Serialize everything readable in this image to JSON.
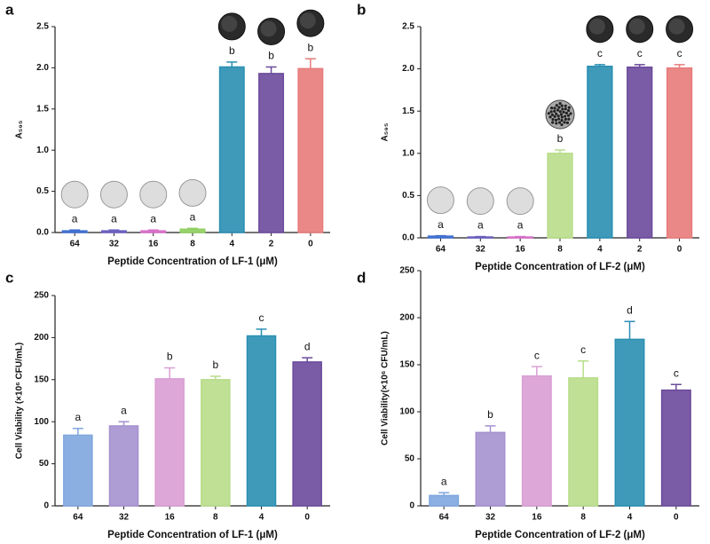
{
  "chart_data": [
    {
      "type": "bar",
      "panel": "a",
      "ylabel": "A₅₉₅",
      "xlabel": "Peptide  Concentration of LF-1 (μM)",
      "categories": [
        "64",
        "32",
        "16",
        "8",
        "4",
        "2",
        "0"
      ],
      "values": [
        0.02,
        0.02,
        0.02,
        0.04,
        2.01,
        1.93,
        1.99
      ],
      "errors": [
        0.01,
        0.01,
        0.01,
        0.01,
        0.06,
        0.08,
        0.12
      ],
      "annotations": [
        "a",
        "a",
        "a",
        "a",
        "b",
        "b",
        "b"
      ],
      "colors": [
        "#3f6fcf",
        "#6a5fc0",
        "#d76fc9",
        "#8fcf5f",
        "#2a8fb3",
        "#6b4a9c",
        "#e87b7b"
      ],
      "ylim": [
        0,
        2.5
      ],
      "yticks": [
        {
          "value": 0,
          "label": "0.0"
        },
        0.5,
        {
          "value": 1,
          "label": "1.0"
        },
        1.5,
        {
          "value": 2,
          "label": "2.0"
        },
        2.5
      ]
    },
    {
      "type": "bar",
      "panel": "b",
      "ylabel": "A₅₉₅",
      "xlabel": "Peptide  Concentration of LF-2 (μM)",
      "categories": [
        "64",
        "32",
        "16",
        "8",
        "4",
        "2",
        "0"
      ],
      "values": [
        0.02,
        0.01,
        0.01,
        1.0,
        2.03,
        2.02,
        2.01
      ],
      "errors": [
        0.005,
        0.005,
        0.005,
        0.04,
        0.02,
        0.03,
        0.04
      ],
      "annotations": [
        "a",
        "a",
        "a",
        "b",
        "c",
        "c",
        "c"
      ],
      "colors": [
        "#3f6fcf",
        "#6a5fc0",
        "#d76fc9",
        "#b8dd8a",
        "#2a8fb3",
        "#6b4a9c",
        "#e87b7b"
      ],
      "ylim": [
        0,
        2.5
      ],
      "yticks": [
        {
          "value": 0,
          "label": "0.0"
        },
        0.5,
        {
          "value": 1,
          "label": "1.0"
        },
        1.5,
        {
          "value": 2,
          "label": "2.0"
        },
        2.5
      ]
    },
    {
      "type": "bar",
      "panel": "c",
      "ylabel": "Cell Viability (×10⁶ CFU/mL)",
      "xlabel": "Peptide  Concentration of LF-1 (μM)",
      "categories": [
        "64",
        "32",
        "16",
        "8",
        "4",
        "0"
      ],
      "values": [
        84,
        95,
        151,
        150,
        202,
        171
      ],
      "errors": [
        8,
        5,
        13,
        4,
        8,
        5
      ],
      "annotations": [
        "a",
        "a",
        "b",
        "b",
        "c",
        "d"
      ],
      "colors": [
        "#7fa6de",
        "#a591cf",
        "#d99fd3",
        "#b8dd8a",
        "#2a8fb3",
        "#6b4a9c"
      ],
      "ylim": [
        0,
        250
      ],
      "yticks": [
        0,
        50,
        100,
        150,
        200,
        250
      ]
    },
    {
      "type": "bar",
      "panel": "d",
      "ylabel": "Cell Viability(×10⁶ CFU/mL)",
      "xlabel": "Peptide  Concentration of LF-2 (μM)",
      "categories": [
        "64",
        "32",
        "16",
        "8",
        "4",
        "0"
      ],
      "values": [
        11,
        78,
        138,
        136,
        177,
        123
      ],
      "errors": [
        3,
        7,
        10,
        18,
        19,
        6
      ],
      "annotations": [
        "a",
        "b",
        "c",
        "c",
        "d",
        "c"
      ],
      "colors": [
        "#7fa6de",
        "#a591cf",
        "#d99fd3",
        "#b8dd8a",
        "#2a8fb3",
        "#6b4a9c"
      ],
      "ylim": [
        0,
        250
      ],
      "yticks": [
        0,
        50,
        100,
        150,
        200,
        250
      ]
    }
  ]
}
